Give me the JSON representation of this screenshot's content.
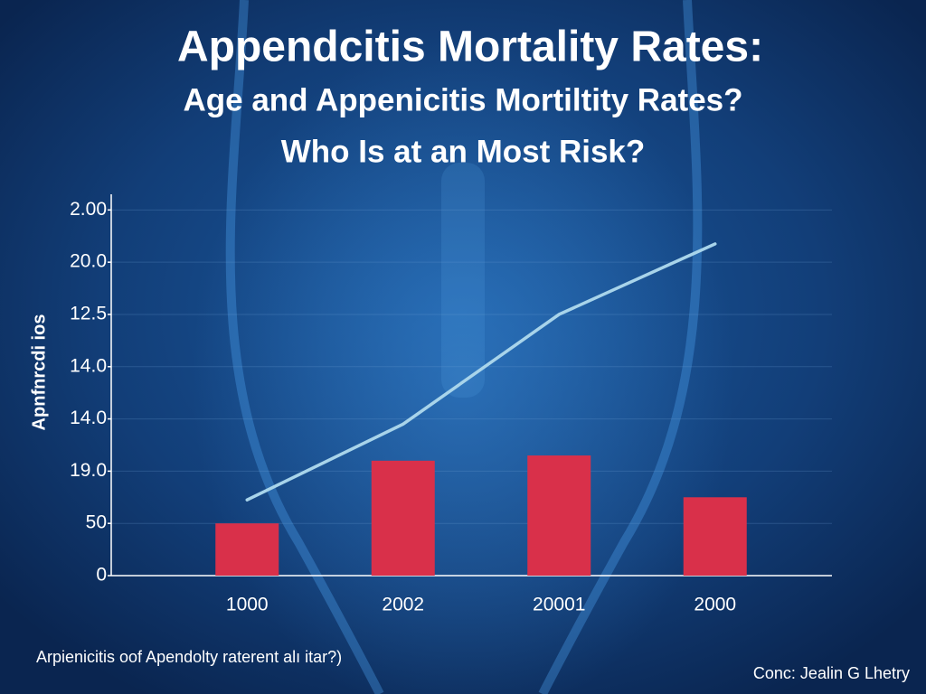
{
  "chart_data": {
    "type": "bar",
    "title": "Appendcitis Mortality Rates:",
    "subtitle": [
      "Age and Appenicitis Mortiltity Rates?",
      "Who Is at an Most Risk?"
    ],
    "y_label": "Apnfnrcdi ios",
    "footnote": "Arpienicitis oof Apendolty raterent alı itar?)",
    "source": "Conc: Jealin G Lhetry",
    "categories": [
      "1000",
      "2002",
      "20001",
      "2000"
    ],
    "series": [
      {
        "type": "bar",
        "color": "#d9304a",
        "values": [
          1.0,
          2.2,
          2.3,
          1.5
        ]
      },
      {
        "type": "line",
        "color": "#a8d4ea",
        "values": [
          1.45,
          2.9,
          5.0,
          6.35
        ]
      }
    ],
    "ylim": [
      0,
      7.3
    ],
    "yticks": [
      {
        "value": 0,
        "label": "0"
      },
      {
        "value": 1,
        "label": "50"
      },
      {
        "value": 2,
        "label": "19.0"
      },
      {
        "value": 3,
        "label": "14.0"
      },
      {
        "value": 4,
        "label": "14.0"
      },
      {
        "value": 5,
        "label": "12.5"
      },
      {
        "value": 6,
        "label": "20.0"
      },
      {
        "value": 7,
        "label": "2.00"
      }
    ],
    "grid": true
  }
}
